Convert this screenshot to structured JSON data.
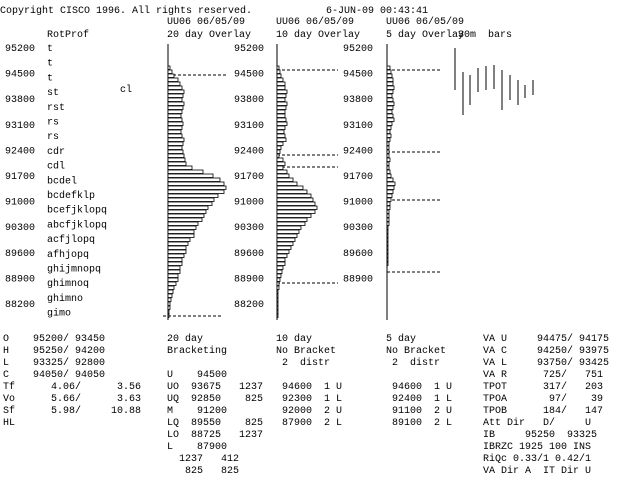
{
  "header": {
    "copyright": "Copyright CISCO 1996. All rights reserved.",
    "datetime": "6-JUN-09 00:43:41"
  },
  "rotprof": {
    "title": "RotProf",
    "note": "cl",
    "prices": [
      "95200",
      "94500",
      "93800",
      "93100",
      "92400",
      "91700",
      "91000",
      "90300",
      "89600",
      "88900",
      "88200"
    ],
    "letters": [
      "t",
      "t",
      "t",
      "st",
      "rst",
      "rs",
      "rs",
      "cdr",
      "cdl",
      "bcdel",
      "bcdefklp",
      "bcefjklopq",
      "abcfjklopq",
      "acfjlopq",
      "afhjopq",
      "ghijmnopq",
      "ghimnoq",
      "ghimno",
      "gimo"
    ]
  },
  "overlays": [
    {
      "symbol": "UU06 06/05/09",
      "label": "20 day Overlay",
      "prices": [
        "95200",
        "94500",
        "93800",
        "93100",
        "92400",
        "91700",
        "91000",
        "90300",
        "89600",
        "88900",
        "88200"
      ],
      "counts": [
        2,
        4,
        6,
        10,
        12,
        14,
        16,
        15,
        14,
        16,
        15,
        14,
        13,
        14,
        15,
        14,
        13,
        14,
        16,
        15,
        14,
        15,
        16,
        17,
        18,
        24,
        35,
        45,
        52,
        56,
        58,
        56,
        50,
        46,
        44,
        40,
        38,
        36,
        34,
        30,
        28,
        26,
        26,
        22,
        20,
        18,
        18,
        16,
        14,
        14,
        12,
        12,
        10,
        10,
        8,
        6,
        5,
        4,
        3,
        2,
        2,
        1,
        1
      ]
    },
    {
      "symbol": "UU06 06/05/09",
      "label": "10 day Overlay",
      "prices": [
        "95200",
        "94500",
        "93800",
        "93100",
        "92400",
        "91700",
        "91000",
        "90300",
        "89600",
        "88900"
      ],
      "counts": [
        2,
        3,
        4,
        6,
        8,
        8,
        10,
        9,
        8,
        10,
        9,
        8,
        8,
        9,
        10,
        8,
        7,
        8,
        9,
        6,
        4,
        3,
        2,
        6,
        8,
        6,
        10,
        12,
        16,
        20,
        26,
        30,
        34,
        36,
        38,
        40,
        38,
        34,
        30,
        28,
        24,
        22,
        20,
        18,
        16,
        14,
        12,
        10,
        8,
        8,
        6,
        5,
        4,
        3,
        2,
        2,
        1,
        1,
        1,
        1,
        1,
        1,
        1
      ]
    },
    {
      "symbol": "UU06 06/05/09",
      "label": "5 day Overlay",
      "counts": [
        3,
        4,
        5,
        6,
        6,
        7,
        6,
        5,
        6,
        7,
        6,
        5,
        6,
        7,
        5,
        4,
        3,
        4,
        3,
        2,
        2,
        2,
        2,
        3,
        2,
        2,
        3,
        4,
        6,
        8,
        7,
        6,
        5,
        4,
        3,
        3,
        2,
        2,
        2,
        2,
        1,
        1,
        1,
        1,
        1,
        1,
        1,
        1,
        1,
        1,
        0,
        0,
        0,
        0,
        0,
        0,
        0,
        0,
        0,
        0,
        0,
        0,
        0
      ]
    }
  ],
  "bars_label": "30m  bars",
  "summary": {
    "left": [
      "O    95200/ 93450",
      "H    95250/ 94200",
      "L    93325/ 92800",
      "C    94050/ 94050",
      "Tf      4.06/      3.56",
      "Vo      5.66/      3.63",
      "Sf      5.98/     10.88",
      "HL"
    ],
    "day20": [
      "20 day",
      "Bracketing",
      "U    94500",
      "UO  93675   1237",
      "UQ  92850    825",
      "M    91200",
      "LQ  89550    825",
      "LO  88725   1237",
      "L    87900",
      "  1237   412",
      "   825   825"
    ],
    "day10": [
      "10 day",
      "No Bracket",
      " 2  distr",
      " 94600  1 U",
      " 92300  1 L",
      " 92000  2 U",
      " 87900  2 L"
    ],
    "day5": [
      "5 day",
      "No Bracket",
      " 2  distr",
      " 94600  1 U",
      " 92400  1 L",
      " 91100  2 U",
      " 89100  2 L"
    ],
    "stats": [
      "VA U     94475/ 94175",
      "VA C     94250/ 93975",
      "VA L     93750/ 93425",
      "VA R      725/   751",
      "TPOT      317/   203",
      "TPOA       97/    39",
      "TPOB      184/   147",
      "Att Dir   D/     U",
      "IB     95250  93325",
      "IBRZC 1925 100 INS",
      "RiQc 0.33/1 0.42/1",
      "VA Dir A  IT Dir U"
    ]
  }
}
